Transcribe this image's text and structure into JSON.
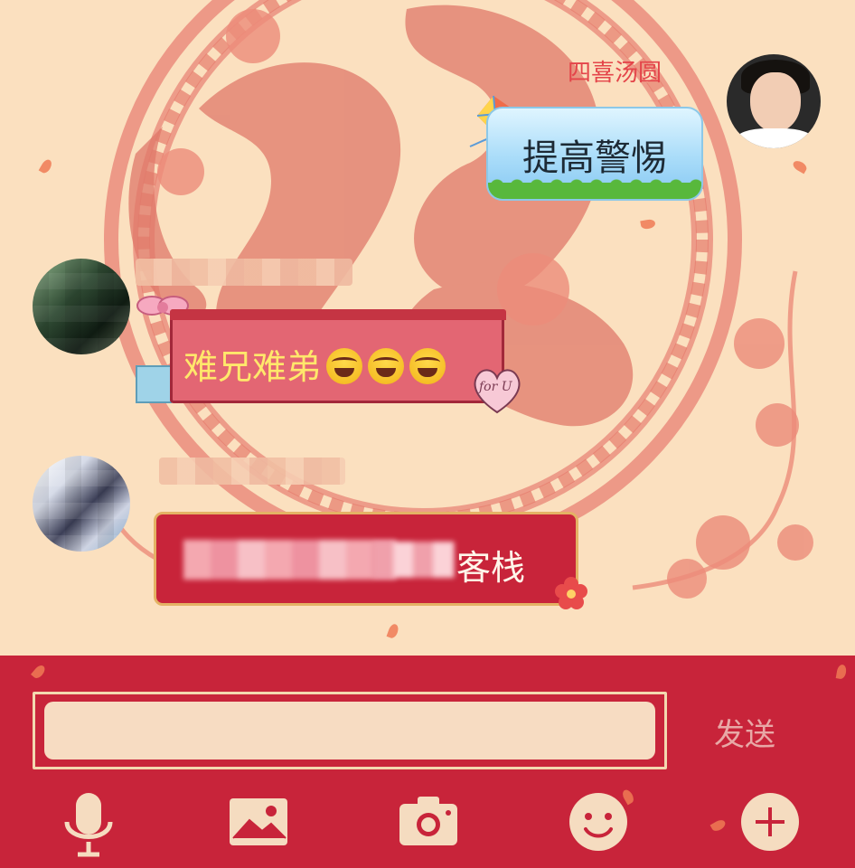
{
  "chat": {
    "outgoing": {
      "sender_name": "四喜汤圆",
      "text": "提高警惕"
    },
    "incoming": [
      {
        "text": "难兄难弟",
        "emoji": [
          "😂",
          "😂",
          "😂"
        ],
        "sticker_text": "for U"
      },
      {
        "visible_text": "客栈"
      }
    ]
  },
  "input_bar": {
    "message_value": "",
    "send_label": "发送"
  },
  "toolbar": {
    "icons": [
      "microphone-icon",
      "image-icon",
      "camera-icon",
      "emoji-icon",
      "plus-icon"
    ]
  },
  "theme": {
    "bar_red": "#c8243a",
    "background_peach": "#fbe0bf",
    "papercut": "#e46e5e"
  }
}
